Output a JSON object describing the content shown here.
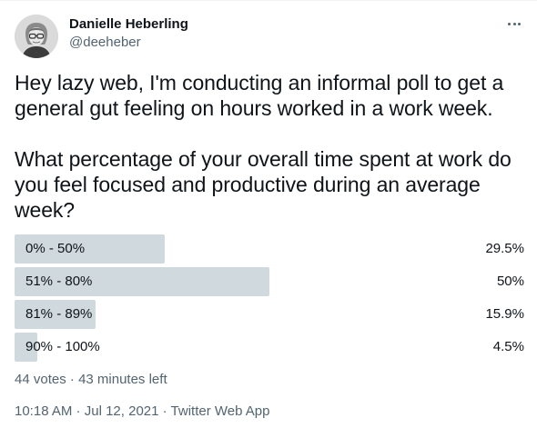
{
  "author": {
    "display_name": "Danielle Heberling",
    "handle": "@deeheber"
  },
  "tweet": {
    "paragraph_1": "Hey lazy web, I'm conducting an informal poll to get a general gut feeling on hours worked in a work week.",
    "paragraph_2": "What percentage of your overall time spent at work do you feel focused and productive during an average week?"
  },
  "poll": {
    "options": [
      {
        "label": "0% - 50%",
        "percent_text": "29.5%",
        "percent": 29.5
      },
      {
        "label": "51% - 80%",
        "percent_text": "50%",
        "percent": 50
      },
      {
        "label": "81% - 89%",
        "percent_text": "15.9%",
        "percent": 15.9
      },
      {
        "label": "90% - 100%",
        "percent_text": "4.5%",
        "percent": 4.5
      }
    ],
    "meta": {
      "votes": "44 votes",
      "separator": " · ",
      "time_left": "43 minutes left"
    }
  },
  "footer": {
    "time": "10:18 AM",
    "separator_1": " · ",
    "date": "Jul 12, 2021",
    "separator_2": " · ",
    "source": "Twitter Web App"
  },
  "icons": {
    "more": "more-horizontal-icon"
  },
  "colors": {
    "bar": "#cfd9de",
    "text": "#0f1419",
    "secondary_text": "#536471"
  }
}
